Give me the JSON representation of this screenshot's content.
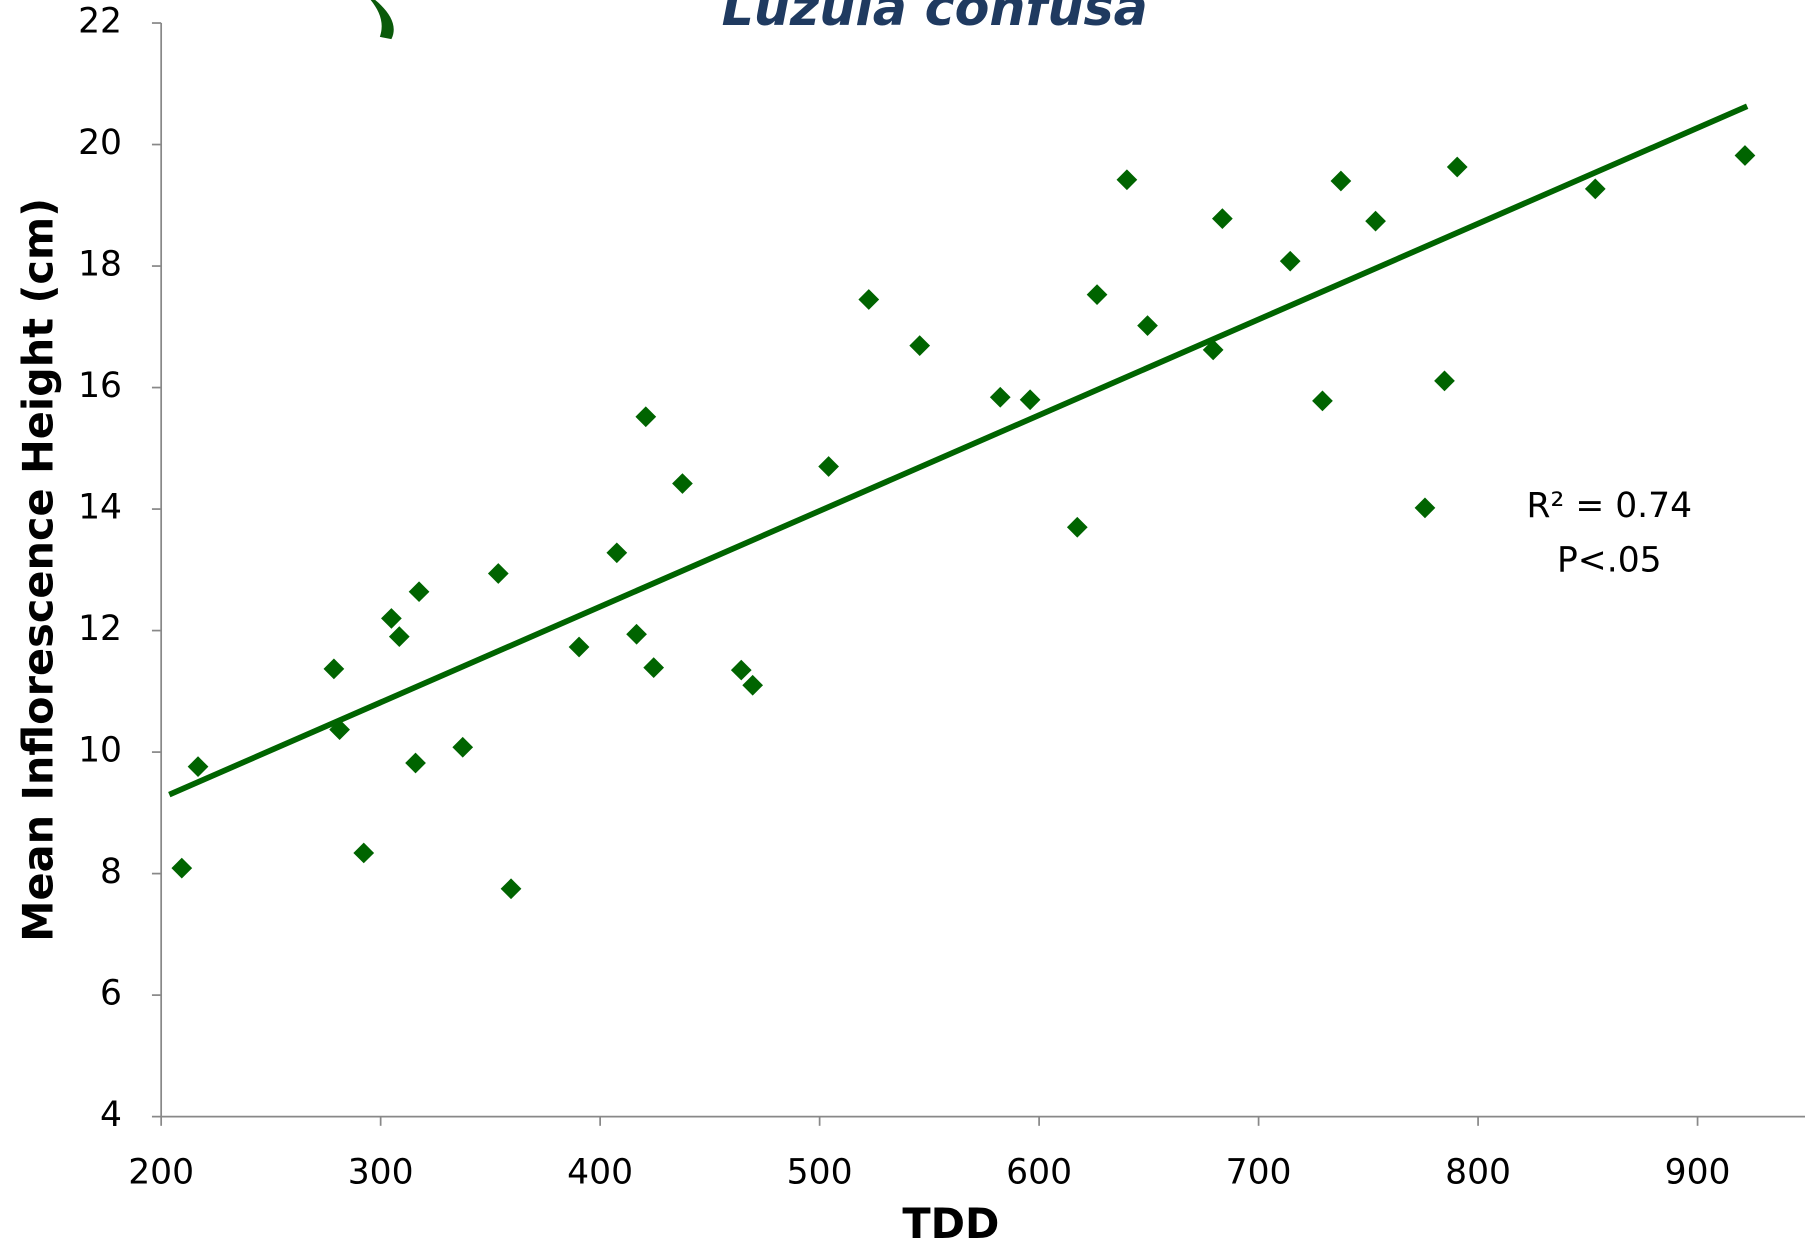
{
  "chart_data": {
    "type": "scatter",
    "title": "Luzula confusa",
    "x_label": "TDD",
    "y_label": "Mean Inflorescence Height (cm)",
    "xlim": [
      200,
      950
    ],
    "ylim": [
      4,
      22
    ],
    "xticks": [
      200,
      300,
      400,
      500,
      600,
      700,
      800,
      900
    ],
    "yticks": [
      4,
      6,
      8,
      10,
      12,
      14,
      16,
      18,
      20,
      22
    ],
    "series": [
      {
        "color": "#006400",
        "x": [
          209.4,
          216.8,
          278.7,
          281.3,
          292.3,
          304.9,
          308.5,
          315.9,
          317.5,
          337.4,
          353.6,
          359.4,
          390.4,
          407.6,
          416.6,
          420.8,
          424.4,
          437.5,
          464.3,
          469.5,
          504.1,
          522.4,
          545.6,
          582.3,
          595.9,
          617.4,
          626.4,
          640.0,
          649.4,
          679.3,
          683.5,
          714.4,
          729.1,
          737.5,
          753.3,
          775.8,
          784.7,
          790.5,
          853.4,
          921.6
        ],
        "values": [
          8.09,
          9.76,
          11.37,
          10.37,
          8.34,
          12.2,
          11.9,
          9.82,
          12.64,
          10.08,
          12.94,
          7.75,
          11.73,
          13.28,
          11.94,
          15.52,
          11.39,
          14.42,
          11.35,
          11.1,
          14.7,
          17.45,
          16.69,
          15.84,
          15.8,
          13.7,
          17.53,
          19.42,
          17.02,
          16.62,
          18.78,
          18.08,
          15.78,
          19.4,
          18.74,
          14.02,
          16.11,
          19.63,
          19.27,
          19.82
        ]
      }
    ],
    "trendline": {
      "color": "#006400",
      "x": [
        203.7,
        922.6
      ],
      "y": [
        9.3,
        20.63
      ]
    },
    "annotations": [
      "R² = 0.74",
      "P<.05"
    ]
  }
}
